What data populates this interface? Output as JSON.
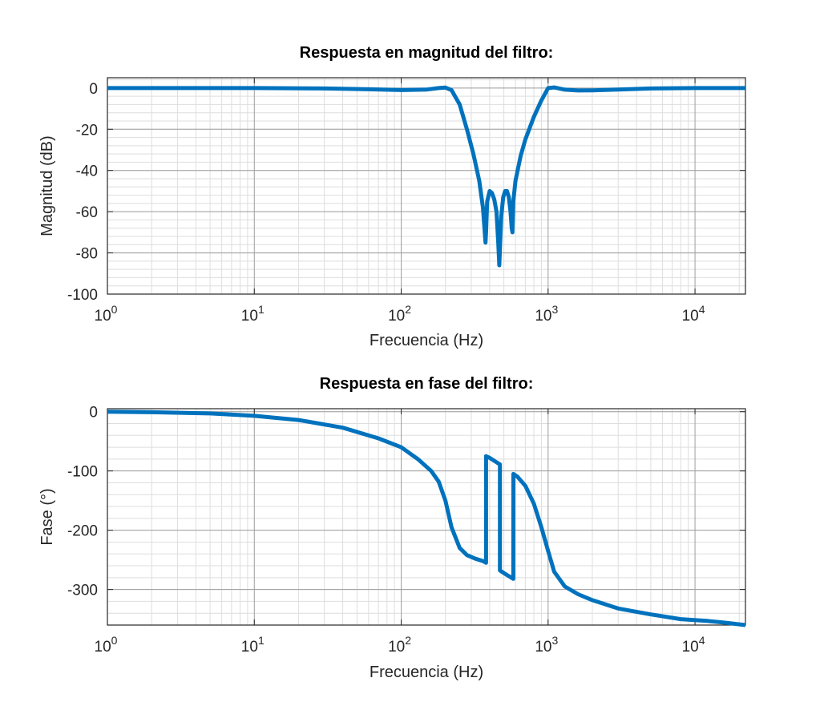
{
  "chart_data": [
    {
      "type": "line",
      "title": "Respuesta en magnitud del filtro:",
      "xlabel": "Frecuencia (Hz)",
      "ylabel": "Magnitud (dB)",
      "xscale": "log",
      "xlim": [
        1,
        22050
      ],
      "ylim": [
        -100,
        5
      ],
      "grid": "major and minor",
      "line_color": "#0072BD",
      "yticks": [
        0,
        -20,
        -40,
        -60,
        -80,
        -100
      ],
      "ytick_labels": [
        "0",
        "-20",
        "-40",
        "-60",
        "-80",
        "-100"
      ],
      "xticks": [
        1,
        10,
        100,
        1000,
        10000
      ],
      "xtick_bases": [
        "10",
        "10",
        "10",
        "10",
        "10"
      ],
      "xtick_exps": [
        "0",
        "1",
        "2",
        "3",
        "4"
      ],
      "series": [
        {
          "x": [
            1,
            10,
            30,
            60,
            100,
            150,
            180,
            200,
            220,
            250,
            280,
            310,
            340,
            360,
            375,
            378,
            385,
            400,
            415,
            430,
            445,
            458,
            465,
            470,
            480,
            495,
            510,
            525,
            540,
            555,
            565,
            572,
            580,
            600,
            650,
            700,
            800,
            900,
            1000,
            1100,
            1300,
            1600,
            2000,
            3000,
            5000,
            10000,
            22050
          ],
          "y": [
            0,
            0,
            -0.2,
            -0.6,
            -1,
            -0.7,
            0,
            0.2,
            -1,
            -8,
            -20,
            -32,
            -45,
            -58,
            -75,
            -70,
            -55,
            -50,
            -51,
            -54,
            -60,
            -75,
            -86,
            -78,
            -62,
            -53,
            -50,
            -50,
            -53,
            -60,
            -68,
            -70,
            -55,
            -45,
            -33,
            -25,
            -14,
            -6,
            0,
            0.3,
            -0.8,
            -1.2,
            -1.1,
            -0.7,
            -0.2,
            0,
            0
          ]
        }
      ]
    },
    {
      "type": "line",
      "title": "Respuesta en fase del filtro:",
      "xlabel": "Frecuencia (Hz)",
      "ylabel": "Fase (°)",
      "xscale": "log",
      "xlim": [
        1,
        22050
      ],
      "ylim": [
        -360,
        5
      ],
      "grid": "major and minor",
      "line_color": "#0072BD",
      "yticks": [
        0,
        -100,
        -200,
        -300
      ],
      "ytick_labels": [
        "0",
        "-100",
        "-200",
        "-300"
      ],
      "xticks": [
        1,
        10,
        100,
        1000,
        10000
      ],
      "xtick_bases": [
        "10",
        "10",
        "10",
        "10",
        "10"
      ],
      "xtick_exps": [
        "0",
        "1",
        "2",
        "3",
        "4"
      ],
      "series": [
        {
          "x": [
            1,
            2,
            5,
            10,
            20,
            40,
            70,
            100,
            130,
            160,
            180,
            200,
            220,
            250,
            280,
            320,
            360,
            378,
            378.1,
            400,
            450,
            470,
            470.1,
            520,
            580,
            580.1,
            620,
            700,
            800,
            900,
            1000,
            1100,
            1300,
            1600,
            2000,
            3000,
            5000,
            8000,
            12000,
            16000,
            22050
          ],
          "y": [
            0,
            -1,
            -3,
            -7,
            -14,
            -27,
            -45,
            -60,
            -80,
            -100,
            -118,
            -150,
            -195,
            -230,
            -242,
            -248,
            -252,
            -255,
            -75,
            -78,
            -86,
            -89,
            -268,
            -275,
            -282,
            -105,
            -110,
            -125,
            -155,
            -195,
            -235,
            -270,
            -295,
            -308,
            -318,
            -332,
            -342,
            -350,
            -353,
            -356,
            -360
          ]
        }
      ]
    }
  ]
}
